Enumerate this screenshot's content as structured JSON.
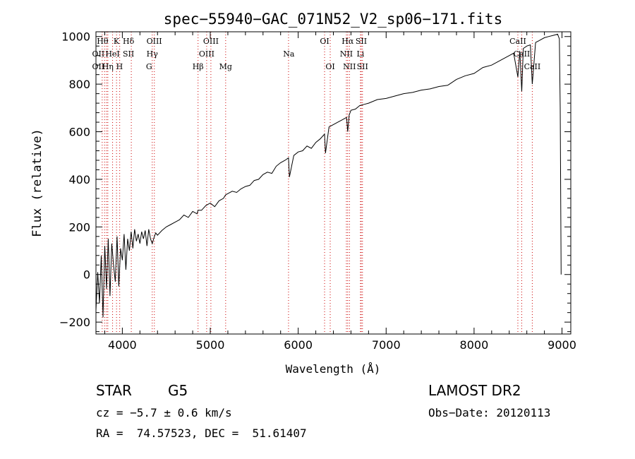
{
  "chart_data": {
    "type": "line",
    "title": "spec−55940−GAC_071N52_V2_sp06−171.fits",
    "xlabel": "Wavelength (Å)",
    "ylabel": "Flux (relative)",
    "xlim": [
      3700,
      9100
    ],
    "ylim": [
      -250,
      1020
    ],
    "x_ticks": [
      4000,
      5000,
      6000,
      7000,
      8000,
      9000
    ],
    "y_ticks": [
      -200,
      0,
      200,
      400,
      600,
      800,
      1000
    ],
    "grid": false,
    "line_color": "#000000",
    "marker_color": "#cc0000",
    "series": [
      {
        "x": [
          3700,
          3720,
          3740,
          3760,
          3780,
          3800,
          3820,
          3840,
          3860,
          3880,
          3900,
          3920,
          3940,
          3960,
          3980,
          4000,
          4020,
          4040,
          4060,
          4080,
          4100,
          4120,
          4140,
          4160,
          4180,
          4200,
          4220,
          4240,
          4260,
          4280,
          4300,
          4320,
          4340,
          4360,
          4380,
          4400,
          4450,
          4500,
          4550,
          4600,
          4650,
          4700,
          4750,
          4800,
          4850,
          4861,
          4900,
          4950,
          5000,
          5050,
          5100,
          5150,
          5175,
          5200,
          5250,
          5300,
          5350,
          5400,
          5450,
          5500,
          5550,
          5600,
          5650,
          5700,
          5750,
          5800,
          5850,
          5890,
          5900,
          5950,
          6000,
          6050,
          6100,
          6150,
          6200,
          6250,
          6300,
          6310,
          6350,
          6400,
          6450,
          6500,
          6550,
          6563,
          6580,
          6600,
          6650,
          6700,
          6750,
          6800,
          6900,
          7000,
          7100,
          7200,
          7300,
          7400,
          7500,
          7600,
          7700,
          7800,
          7900,
          8000,
          8100,
          8200,
          8300,
          8400,
          8450,
          8498,
          8520,
          8542,
          8560,
          8600,
          8640,
          8662,
          8700,
          8750,
          8800,
          8850,
          8900,
          8950,
          8970,
          8980,
          8990
        ],
        "y": [
          -150,
          10,
          -120,
          80,
          -180,
          120,
          -60,
          150,
          -90,
          130,
          40,
          -30,
          160,
          -50,
          110,
          60,
          170,
          20,
          150,
          100,
          180,
          110,
          190,
          140,
          170,
          130,
          180,
          150,
          185,
          120,
          190,
          150,
          130,
          155,
          175,
          165,
          185,
          200,
          210,
          220,
          230,
          250,
          240,
          265,
          255,
          270,
          270,
          290,
          300,
          285,
          310,
          320,
          335,
          340,
          350,
          345,
          360,
          370,
          375,
          395,
          400,
          420,
          430,
          425,
          455,
          470,
          480,
          490,
          410,
          500,
          515,
          520,
          540,
          530,
          555,
          570,
          590,
          510,
          620,
          630,
          640,
          650,
          660,
          600,
          670,
          690,
          695,
          710,
          715,
          720,
          735,
          740,
          750,
          760,
          765,
          775,
          780,
          790,
          795,
          820,
          835,
          845,
          870,
          880,
          900,
          920,
          930,
          830,
          940,
          770,
          950,
          960,
          965,
          800,
          975,
          985,
          995,
          1000,
          1005,
          1010,
          990,
          700,
          0
        ]
      }
    ],
    "line_markers": {
      "positions": [
        3771,
        3798,
        3820,
        3835,
        3889,
        3934,
        3970,
        4102,
        4340,
        4364,
        4861,
        4959,
        5007,
        5175,
        5890,
        6300,
        6364,
        6548,
        6563,
        6583,
        6708,
        6717,
        6731,
        8498,
        8542,
        8662
      ],
      "labels": [
        {
          "text": "Hθ",
          "x": 3775,
          "row": 0
        },
        {
          "text": "K",
          "x": 3933,
          "row": 0
        },
        {
          "text": "Hδ",
          "x": 4070,
          "row": 0
        },
        {
          "text": "OIII",
          "x": 4363,
          "row": 0
        },
        {
          "text": "OIII",
          "x": 5007,
          "row": 0
        },
        {
          "text": "OI",
          "x": 6300,
          "row": 0
        },
        {
          "text": "Hα",
          "x": 6563,
          "row": 0
        },
        {
          "text": "SII",
          "x": 6717,
          "row": 0
        },
        {
          "text": "CaII",
          "x": 8498,
          "row": 0
        },
        {
          "text": "OII",
          "x": 3727,
          "row": 1
        },
        {
          "text": "HeI",
          "x": 3889,
          "row": 1
        },
        {
          "text": "SII",
          "x": 4070,
          "row": 1
        },
        {
          "text": "Hγ",
          "x": 4340,
          "row": 1
        },
        {
          "text": "OIII",
          "x": 4959,
          "row": 1
        },
        {
          "text": "Na",
          "x": 5893,
          "row": 1
        },
        {
          "text": "NII",
          "x": 6548,
          "row": 1
        },
        {
          "text": "Li",
          "x": 6708,
          "row": 1
        },
        {
          "text": "CaII",
          "x": 8542,
          "row": 1
        },
        {
          "text": "OII",
          "x": 3727,
          "row": 2
        },
        {
          "text": "Hη",
          "x": 3835,
          "row": 2
        },
        {
          "text": "H",
          "x": 3968,
          "row": 2
        },
        {
          "text": "G",
          "x": 4304,
          "row": 2
        },
        {
          "text": "Hβ",
          "x": 4861,
          "row": 2
        },
        {
          "text": "Mg",
          "x": 5175,
          "row": 2
        },
        {
          "text": "OI",
          "x": 6364,
          "row": 2
        },
        {
          "text": "NII",
          "x": 6583,
          "row": 2
        },
        {
          "text": "SII",
          "x": 6731,
          "row": 2
        },
        {
          "text": "CaII",
          "x": 8662,
          "row": 2
        }
      ]
    }
  },
  "info": {
    "object_type": "STAR",
    "subclass": "G5",
    "survey": "LAMOST DR2",
    "redshift": "cz = −5.7 ± 0.6 km/s",
    "obs_date": "Obs−Date: 20120113",
    "coords": "RA =  74.57523, DEC =  51.61407"
  }
}
